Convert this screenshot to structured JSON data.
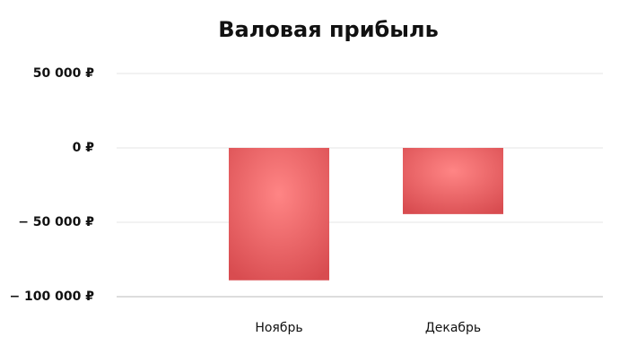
{
  "chart_data": {
    "type": "bar",
    "title": "Валовая прибыль",
    "categories": [
      "Ноябрь",
      "Декабрь"
    ],
    "values": [
      -89000,
      -44500
    ],
    "color": "#d84c50",
    "ylim": [
      -100000,
      50000
    ],
    "yticks": [
      {
        "value": -100000,
        "label": "− 100 000 ₽"
      },
      {
        "value": -50000,
        "label": "− 50 000 ₽"
      },
      {
        "value": 0,
        "label": "0 ₽"
      },
      {
        "value": 50000,
        "label": "50 000 ₽"
      }
    ],
    "grid": true
  }
}
